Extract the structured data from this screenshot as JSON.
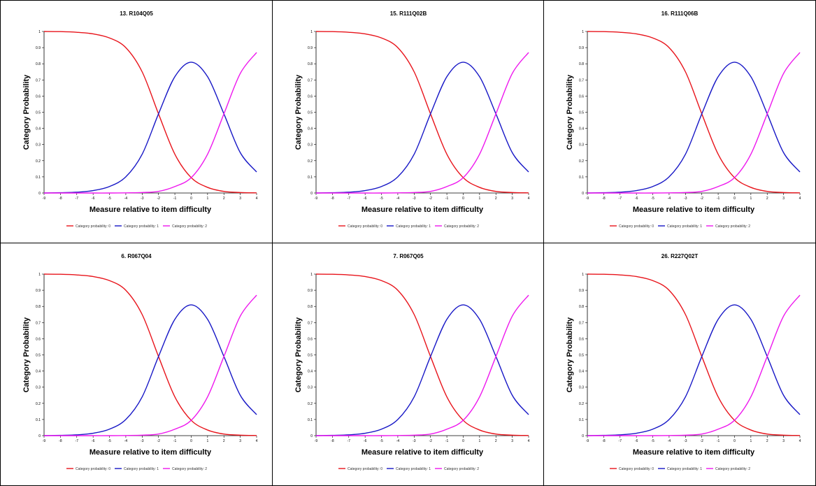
{
  "chart_data": [
    {
      "type": "line",
      "title": "13. R104Q05",
      "xlabel": "Measure relative to item difficulty",
      "ylabel": "Category Probability",
      "xlim": [
        -9,
        4
      ],
      "ylim": [
        0,
        1
      ],
      "x_ticks": [
        "-9",
        "-8",
        "-7",
        "-6",
        "-5",
        "-4",
        "-3",
        "-2",
        "-1",
        "0",
        "1",
        "2",
        "3",
        "4"
      ],
      "y_ticks": [
        "0",
        "0.1",
        "0.2",
        "0.3",
        "0.4",
        "0.5",
        "0.6",
        "0.7",
        "0.8",
        "0.9",
        "1"
      ],
      "x": [
        -9,
        -8,
        -7,
        -6,
        -5,
        -4,
        -3,
        -2,
        -1,
        0,
        1,
        2,
        3,
        4
      ],
      "series": [
        {
          "name": "Category probability: 0",
          "color": "#e8141b",
          "values": [
            1.0,
            0.999,
            0.995,
            0.985,
            0.96,
            0.9,
            0.75,
            0.49,
            0.24,
            0.095,
            0.035,
            0.01,
            0.003,
            0.001
          ]
        },
        {
          "name": "Category probability: 1",
          "color": "#1717c6",
          "values": [
            0.0,
            0.002,
            0.005,
            0.015,
            0.04,
            0.1,
            0.24,
            0.49,
            0.72,
            0.81,
            0.72,
            0.49,
            0.25,
            0.13
          ]
        },
        {
          "name": "Category probability: 2",
          "color": "#ee17ee",
          "values": [
            0.0,
            0.0,
            0.0,
            0.0,
            0.0,
            0.001,
            0.003,
            0.01,
            0.04,
            0.095,
            0.24,
            0.49,
            0.74,
            0.87
          ]
        }
      ],
      "legend_position": "bottom",
      "grid": false
    },
    {
      "type": "line",
      "title": "15. R111Q02B",
      "xlabel": "Measure relative to item difficulty",
      "ylabel": "Category Probability",
      "xlim": [
        -9,
        4
      ],
      "ylim": [
        0,
        1
      ],
      "x_ticks": [
        "-9",
        "-8",
        "-7",
        "-6",
        "-5",
        "-4",
        "-3",
        "-2",
        "-1",
        "0",
        "1",
        "2",
        "3",
        "4"
      ],
      "y_ticks": [
        "0",
        "0.1",
        "0.2",
        "0.3",
        "0.4",
        "0.5",
        "0.6",
        "0.7",
        "0.8",
        "0.9",
        "1"
      ],
      "x": [
        -9,
        -8,
        -7,
        -6,
        -5,
        -4,
        -3,
        -2,
        -1,
        0,
        1,
        2,
        3,
        4
      ],
      "series": [
        {
          "name": "Category probability: 0",
          "color": "#e8141b",
          "values": [
            1.0,
            0.999,
            0.995,
            0.985,
            0.96,
            0.9,
            0.75,
            0.49,
            0.24,
            0.095,
            0.035,
            0.01,
            0.003,
            0.001
          ]
        },
        {
          "name": "Category probability: 1",
          "color": "#1717c6",
          "values": [
            0.0,
            0.002,
            0.005,
            0.015,
            0.04,
            0.1,
            0.24,
            0.49,
            0.72,
            0.81,
            0.72,
            0.49,
            0.25,
            0.13
          ]
        },
        {
          "name": "Category probability: 2",
          "color": "#ee17ee",
          "values": [
            0.0,
            0.0,
            0.0,
            0.0,
            0.0,
            0.001,
            0.003,
            0.01,
            0.04,
            0.095,
            0.24,
            0.49,
            0.74,
            0.87
          ]
        }
      ],
      "legend_position": "bottom",
      "grid": false
    },
    {
      "type": "line",
      "title": "16. R111Q06B",
      "xlabel": "Measure relative to item difficulty",
      "ylabel": "Category Probability",
      "xlim": [
        -9,
        4
      ],
      "ylim": [
        0,
        1
      ],
      "x_ticks": [
        "-9",
        "-8",
        "-7",
        "-6",
        "-5",
        "-4",
        "-3",
        "-2",
        "-1",
        "0",
        "1",
        "2",
        "3",
        "4"
      ],
      "y_ticks": [
        "0",
        "0.1",
        "0.2",
        "0.3",
        "0.4",
        "0.5",
        "0.6",
        "0.7",
        "0.8",
        "0.9",
        "1"
      ],
      "x": [
        -9,
        -8,
        -7,
        -6,
        -5,
        -4,
        -3,
        -2,
        -1,
        0,
        1,
        2,
        3,
        4
      ],
      "series": [
        {
          "name": "Category probability: 0",
          "color": "#e8141b",
          "values": [
            1.0,
            0.999,
            0.995,
            0.985,
            0.96,
            0.9,
            0.75,
            0.49,
            0.24,
            0.095,
            0.035,
            0.01,
            0.003,
            0.001
          ]
        },
        {
          "name": "Category probability: 1",
          "color": "#1717c6",
          "values": [
            0.0,
            0.002,
            0.005,
            0.015,
            0.04,
            0.1,
            0.24,
            0.49,
            0.72,
            0.81,
            0.72,
            0.49,
            0.25,
            0.13
          ]
        },
        {
          "name": "Category probability: 2",
          "color": "#ee17ee",
          "values": [
            0.0,
            0.0,
            0.0,
            0.0,
            0.0,
            0.001,
            0.003,
            0.01,
            0.04,
            0.095,
            0.24,
            0.49,
            0.74,
            0.87
          ]
        }
      ],
      "legend_position": "bottom",
      "grid": false
    },
    {
      "type": "line",
      "title": "6. R067Q04",
      "xlabel": "Measure relative to item difficulty",
      "ylabel": "Category Probability",
      "xlim": [
        -9,
        4
      ],
      "ylim": [
        0,
        1
      ],
      "x_ticks": [
        "-9",
        "-8",
        "-7",
        "-6",
        "-5",
        "-4",
        "-3",
        "-2",
        "-1",
        "0",
        "1",
        "2",
        "3",
        "4"
      ],
      "y_ticks": [
        "0",
        "0.1",
        "0.2",
        "0.3",
        "0.4",
        "0.5",
        "0.6",
        "0.7",
        "0.8",
        "0.9",
        "1"
      ],
      "x": [
        -9,
        -8,
        -7,
        -6,
        -5,
        -4,
        -3,
        -2,
        -1,
        0,
        1,
        2,
        3,
        4
      ],
      "series": [
        {
          "name": "Category probability: 0",
          "color": "#e8141b",
          "values": [
            1.0,
            0.999,
            0.995,
            0.985,
            0.96,
            0.9,
            0.75,
            0.49,
            0.24,
            0.095,
            0.035,
            0.01,
            0.003,
            0.001
          ]
        },
        {
          "name": "Category probability: 1",
          "color": "#1717c6",
          "values": [
            0.0,
            0.002,
            0.005,
            0.015,
            0.04,
            0.1,
            0.24,
            0.49,
            0.72,
            0.81,
            0.72,
            0.49,
            0.25,
            0.13
          ]
        },
        {
          "name": "Category probability: 2",
          "color": "#ee17ee",
          "values": [
            0.0,
            0.0,
            0.0,
            0.0,
            0.0,
            0.001,
            0.003,
            0.01,
            0.04,
            0.095,
            0.24,
            0.49,
            0.74,
            0.87
          ]
        }
      ],
      "legend_position": "bottom",
      "grid": false
    },
    {
      "type": "line",
      "title": "7. R067Q05",
      "xlabel": "Measure relative to item difficulty",
      "ylabel": "Category Probability",
      "xlim": [
        -9,
        4
      ],
      "ylim": [
        0,
        1
      ],
      "x_ticks": [
        "-9",
        "-8",
        "-7",
        "-6",
        "-5",
        "-4",
        "-3",
        "-2",
        "-1",
        "0",
        "1",
        "2",
        "3",
        "4"
      ],
      "y_ticks": [
        "0",
        "0.1",
        "0.2",
        "0.3",
        "0.4",
        "0.5",
        "0.6",
        "0.7",
        "0.8",
        "0.9",
        "1"
      ],
      "x": [
        -9,
        -8,
        -7,
        -6,
        -5,
        -4,
        -3,
        -2,
        -1,
        0,
        1,
        2,
        3,
        4
      ],
      "series": [
        {
          "name": "Category probability: 0",
          "color": "#e8141b",
          "values": [
            1.0,
            0.999,
            0.995,
            0.985,
            0.96,
            0.9,
            0.75,
            0.49,
            0.24,
            0.095,
            0.035,
            0.01,
            0.003,
            0.001
          ]
        },
        {
          "name": "Category probability: 1",
          "color": "#1717c6",
          "values": [
            0.0,
            0.002,
            0.005,
            0.015,
            0.04,
            0.1,
            0.24,
            0.49,
            0.72,
            0.81,
            0.72,
            0.49,
            0.25,
            0.13
          ]
        },
        {
          "name": "Category probability: 2",
          "color": "#ee17ee",
          "values": [
            0.0,
            0.0,
            0.0,
            0.0,
            0.0,
            0.001,
            0.003,
            0.01,
            0.04,
            0.095,
            0.24,
            0.49,
            0.74,
            0.87
          ]
        }
      ],
      "legend_position": "bottom",
      "grid": false
    },
    {
      "type": "line",
      "title": "26. R227Q02T",
      "xlabel": "Measure relative to item difficulty",
      "ylabel": "Category Probability",
      "xlim": [
        -9,
        4
      ],
      "ylim": [
        0,
        1
      ],
      "x_ticks": [
        "-9",
        "-8",
        "-7",
        "-6",
        "-5",
        "-4",
        "-3",
        "-2",
        "-1",
        "0",
        "1",
        "2",
        "3",
        "4"
      ],
      "y_ticks": [
        "0",
        "0.1",
        "0.2",
        "0.3",
        "0.4",
        "0.5",
        "0.6",
        "0.7",
        "0.8",
        "0.9",
        "1"
      ],
      "x": [
        -9,
        -8,
        -7,
        -6,
        -5,
        -4,
        -3,
        -2,
        -1,
        0,
        1,
        2,
        3,
        4
      ],
      "series": [
        {
          "name": "Category probability: 0",
          "color": "#e8141b",
          "values": [
            1.0,
            0.999,
            0.995,
            0.985,
            0.96,
            0.9,
            0.75,
            0.49,
            0.24,
            0.095,
            0.035,
            0.01,
            0.003,
            0.001
          ]
        },
        {
          "name": "Category probability: 1",
          "color": "#1717c6",
          "values": [
            0.0,
            0.002,
            0.005,
            0.015,
            0.04,
            0.1,
            0.24,
            0.49,
            0.72,
            0.81,
            0.72,
            0.49,
            0.25,
            0.13
          ]
        },
        {
          "name": "Category probability: 2",
          "color": "#ee17ee",
          "values": [
            0.0,
            0.0,
            0.0,
            0.0,
            0.0,
            0.001,
            0.003,
            0.01,
            0.04,
            0.095,
            0.24,
            0.49,
            0.74,
            0.87
          ]
        }
      ],
      "legend_position": "bottom",
      "grid": false
    }
  ]
}
